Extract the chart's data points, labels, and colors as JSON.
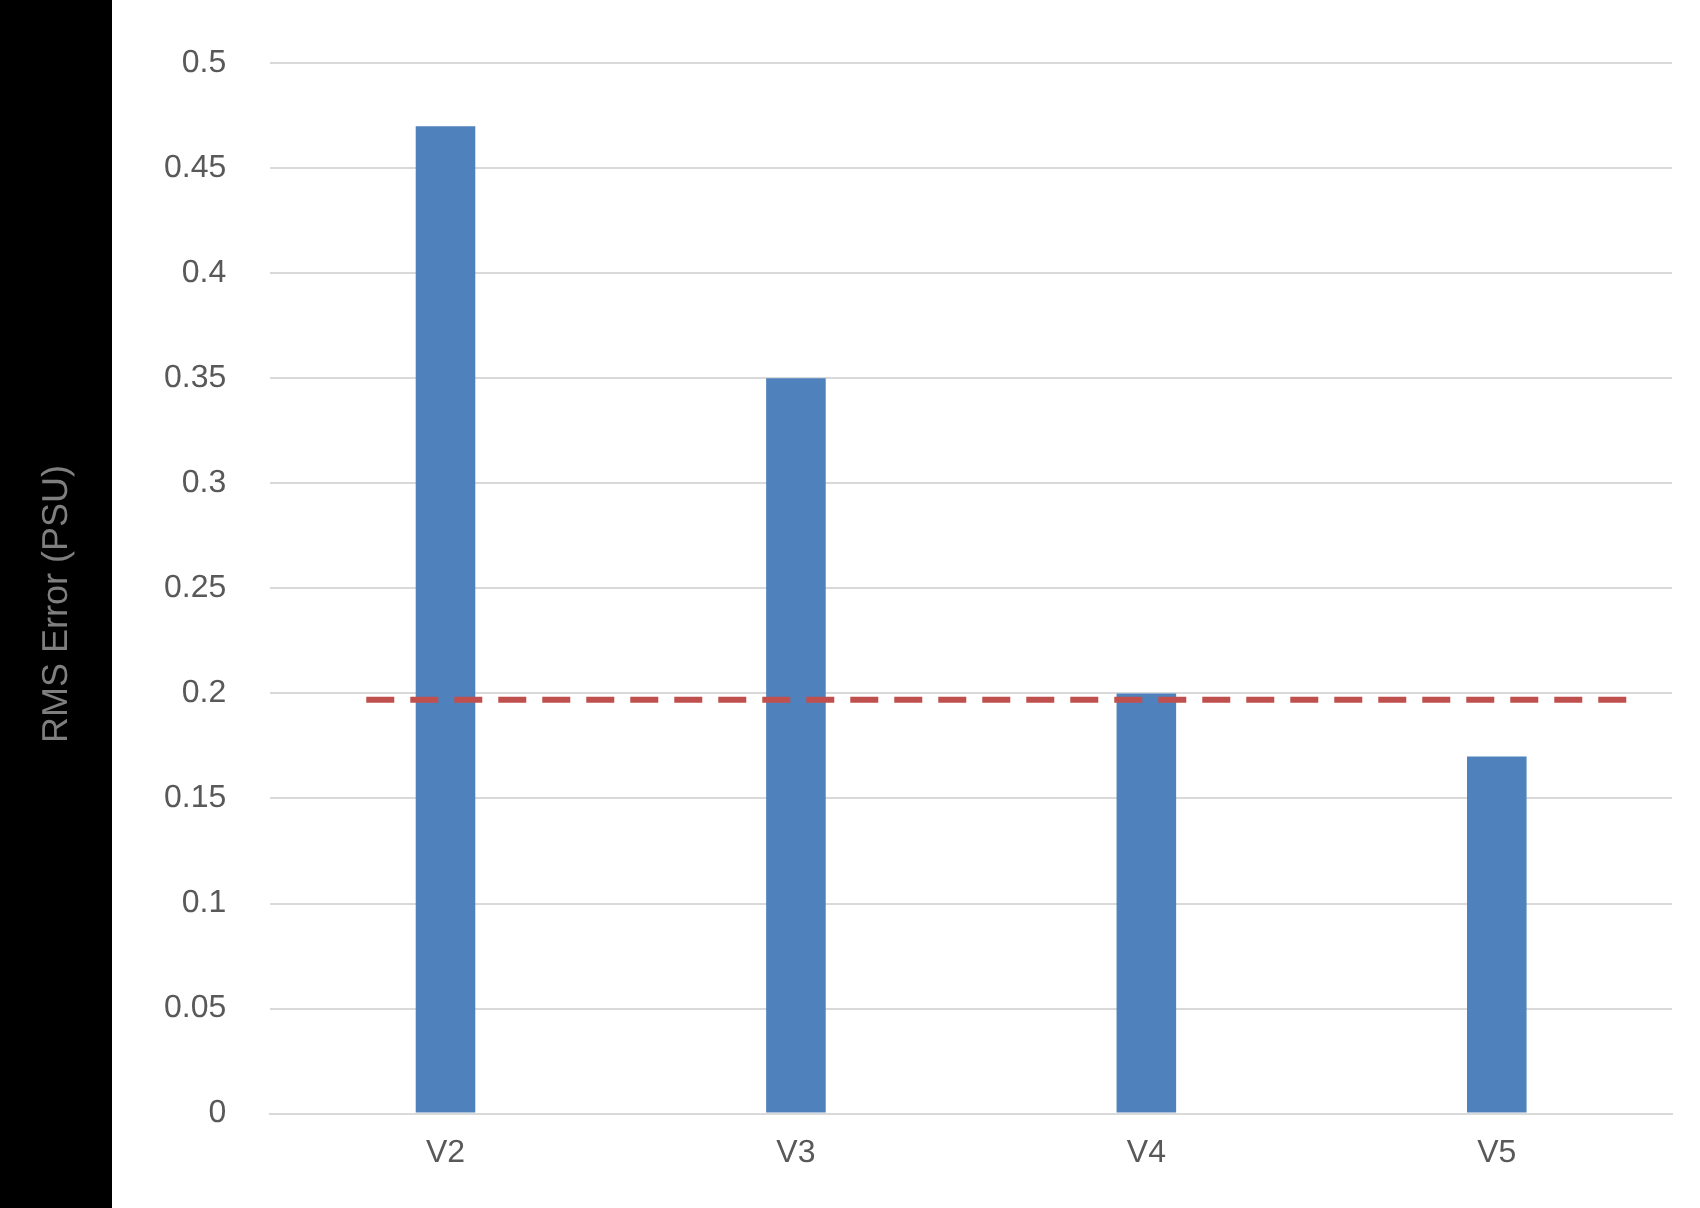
{
  "chart_data": {
    "type": "bar",
    "ylabel": "RMS Error  (PSU)",
    "categories": [
      "V2",
      "V3",
      "V4",
      "V5"
    ],
    "values": [
      0.47,
      0.35,
      0.2,
      0.17
    ],
    "color": "#4f81bd",
    "ylim": [
      0,
      0.5
    ],
    "yticks": [
      0,
      0.05,
      0.1,
      0.15,
      0.2,
      0.25,
      0.3,
      0.35,
      0.4,
      0.45,
      0.5
    ],
    "grid": "y",
    "ref_lines": [
      {
        "axis": "y",
        "value": 0.197,
        "color": "#c0504d",
        "line_style": "dashed"
      }
    ]
  }
}
